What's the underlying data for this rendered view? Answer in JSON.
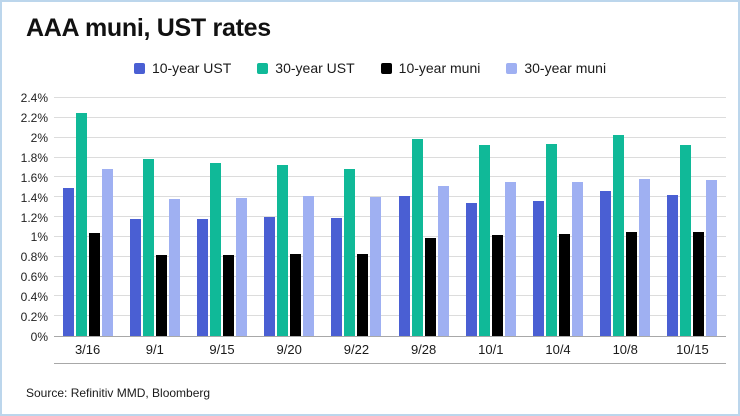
{
  "chart_data": {
    "type": "bar",
    "title": "AAA muni, UST rates",
    "source": "Source: Refinitiv MMD, Bloomberg",
    "xlabel": "",
    "ylabel": "",
    "ylim": [
      0,
      2.4
    ],
    "grid": true,
    "legend_position": "top-center",
    "yticks": [
      "0%",
      "0.2%",
      "0.4%",
      "0.6%",
      "0.8%",
      "1%",
      "1.2%",
      "1.4%",
      "1.6%",
      "1.8%",
      "2%",
      "2.2%",
      "2.4%"
    ],
    "categories": [
      "3/16",
      "9/1",
      "9/15",
      "9/20",
      "9/22",
      "9/28",
      "10/1",
      "10/4",
      "10/8",
      "10/15"
    ],
    "series": [
      {
        "name": "10-year UST",
        "color": "#4a5fd3",
        "values": [
          1.49,
          1.18,
          1.18,
          1.2,
          1.19,
          1.41,
          1.34,
          1.36,
          1.46,
          1.42
        ]
      },
      {
        "name": "30-year UST",
        "color": "#10b998",
        "values": [
          2.25,
          1.78,
          1.74,
          1.72,
          1.68,
          1.99,
          1.93,
          1.94,
          2.03,
          1.93
        ]
      },
      {
        "name": "10-year muni",
        "color": "#000000",
        "values": [
          1.04,
          0.82,
          0.82,
          0.83,
          0.83,
          0.99,
          1.02,
          1.03,
          1.05,
          1.05
        ]
      },
      {
        "name": "30-year muni",
        "color": "#9fb0f2",
        "values": [
          1.68,
          1.38,
          1.39,
          1.41,
          1.4,
          1.51,
          1.55,
          1.55,
          1.58,
          1.57
        ]
      }
    ]
  }
}
